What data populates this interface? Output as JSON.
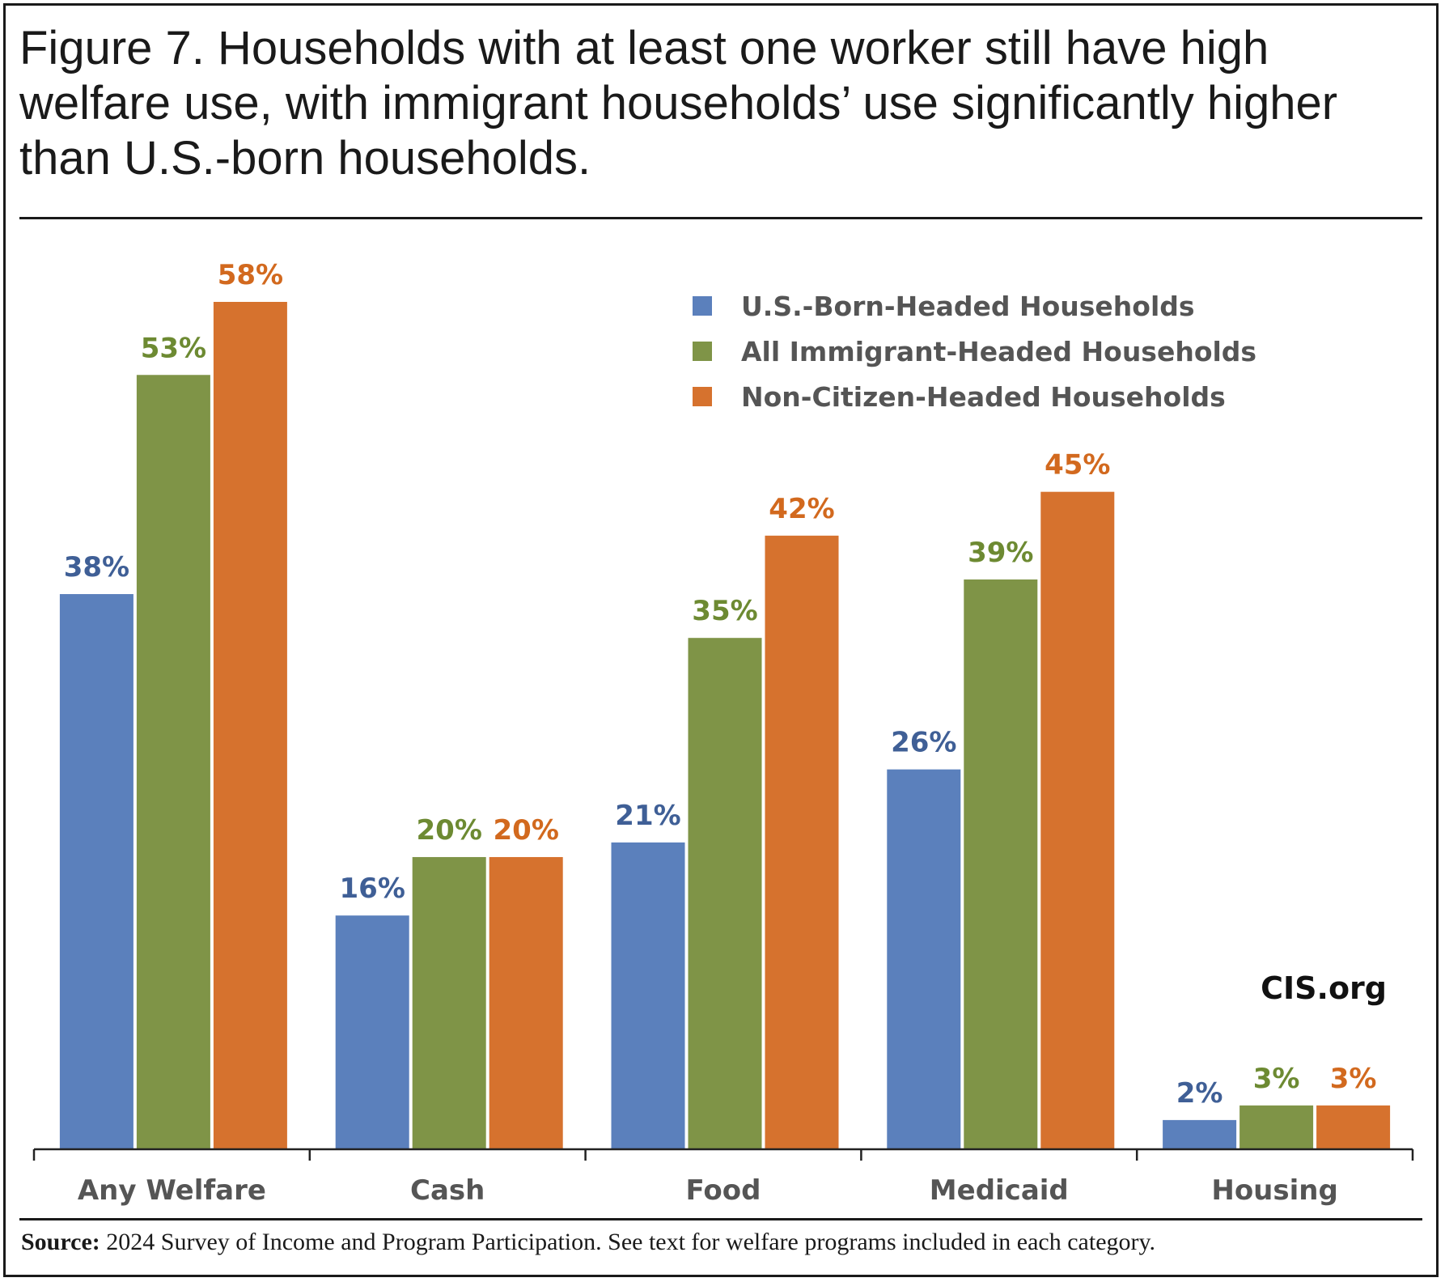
{
  "title": "Figure 7. Households with at least one worker still have high welfare use, with immigrant households’ use significantly higher than U.S.-born households.",
  "watermark": "CIS.org",
  "source": {
    "label": "Source:",
    "text": " 2024 Survey of Income and Program Participation. See text for welfare programs included in each category."
  },
  "chart_data": {
    "type": "bar",
    "title": "",
    "xlabel": "",
    "ylabel": "",
    "ylim": [
      0,
      60
    ],
    "grid": false,
    "legend_position": "top-right",
    "categories": [
      "Any Welfare",
      "Cash",
      "Food",
      "Medicaid",
      "Housing"
    ],
    "series": [
      {
        "name": "U.S.-Born-Headed Households",
        "color": "#5b80bc",
        "label_color": "#3f5f96",
        "values": [
          38,
          16,
          21,
          26,
          2
        ],
        "labels": [
          "38%",
          "16%",
          "21%",
          "26%",
          "2%"
        ]
      },
      {
        "name": "All Immigrant-Headed Households",
        "color": "#7f9447",
        "label_color": "#6d8a32",
        "values": [
          53,
          20,
          35,
          39,
          3
        ],
        "labels": [
          "53%",
          "20%",
          "35%",
          "39%",
          "3%"
        ]
      },
      {
        "name": "Non-Citizen-Headed Households",
        "color": "#d6722e",
        "label_color": "#d2691e",
        "values": [
          58,
          20,
          42,
          45,
          3
        ],
        "labels": [
          "58%",
          "20%",
          "42%",
          "45%",
          "3%"
        ]
      }
    ]
  }
}
